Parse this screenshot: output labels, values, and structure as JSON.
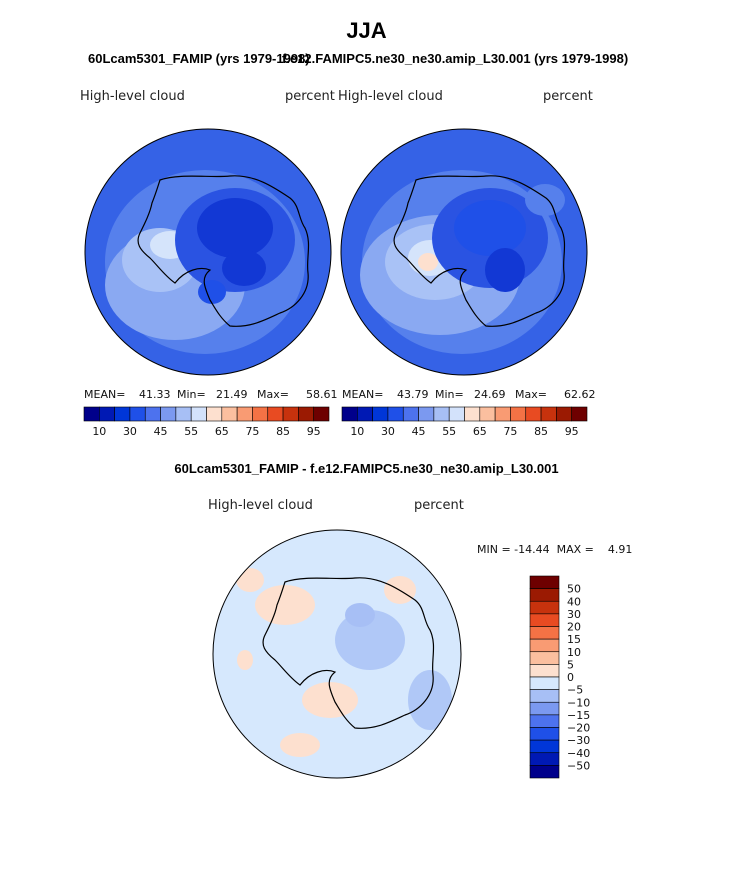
{
  "title": "JJA",
  "subtitles": {
    "left": "60Lcam5301_FAMIP (yrs 1979-1998)",
    "right": "f.e12.FAMIPC5.ne30_ne30.amip_L30.001 (yrs 1979-1998)"
  },
  "colors": {
    "circle_edge": "#000000",
    "coast": "#000000",
    "seq_palette": [
      "#00008b",
      "#0019b4",
      "#0036d8",
      "#1f50e8",
      "#4d72ee",
      "#7b99f0",
      "#a7bff5",
      "#d3e2fb",
      "#fde0cf",
      "#fbbf9f",
      "#f99b73",
      "#f47245",
      "#e84b22",
      "#c7320d",
      "#9b1a02",
      "#6e0000"
    ],
    "diff_palette": [
      "#00008b",
      "#0019b4",
      "#0036d8",
      "#1f50e8",
      "#4d72ee",
      "#7b99f0",
      "#a7bff5",
      "#d6e8fd",
      "#fde0cf",
      "#fbbf9f",
      "#f99b73",
      "#f47245",
      "#e84b22",
      "#c7320d",
      "#9b1a02",
      "#6e0000"
    ]
  },
  "chart_data": [
    {
      "type": "heatmap",
      "name": "model-field",
      "variable": "High-level cloud",
      "units": "percent",
      "mean_label": "MEAN=",
      "mean": "41.33",
      "min_label": "Min=",
      "min": "21.49",
      "max_label": "Max=",
      "max": "58.61",
      "colorbar_levels": [
        10,
        15,
        20,
        25,
        30,
        35,
        40,
        45,
        50,
        55,
        60,
        65,
        70,
        75,
        80,
        85,
        90,
        95
      ],
      "colorbar_ticks": [
        "10",
        "30",
        "45",
        "55",
        "65",
        "75",
        "85",
        "95"
      ]
    },
    {
      "type": "heatmap",
      "name": "obs-field",
      "variable": "High-level cloud",
      "units": "percent",
      "mean_label": "MEAN=",
      "mean": "43.79",
      "min_label": "Min=",
      "min": "24.69",
      "max_label": "Max=",
      "max": "62.62",
      "colorbar_ticks": [
        "10",
        "30",
        "45",
        "55",
        "65",
        "75",
        "85",
        "95"
      ]
    },
    {
      "type": "heatmap",
      "name": "difference-field",
      "title": "60Lcam5301_FAMIP - f.e12.FAMIPC5.ne30_ne30.amip_L30.001",
      "variable": "High-level cloud",
      "units": "percent",
      "min_max_text": "MIN = -14.44  MAX =    4.91",
      "min": -14.44,
      "max": 4.91,
      "colorbar_ticks": [
        "50",
        "40",
        "30",
        "20",
        "15",
        "10",
        "5",
        "0",
        "−5",
        "−10",
        "−15",
        "−20",
        "−30",
        "−40",
        "−50"
      ]
    }
  ]
}
